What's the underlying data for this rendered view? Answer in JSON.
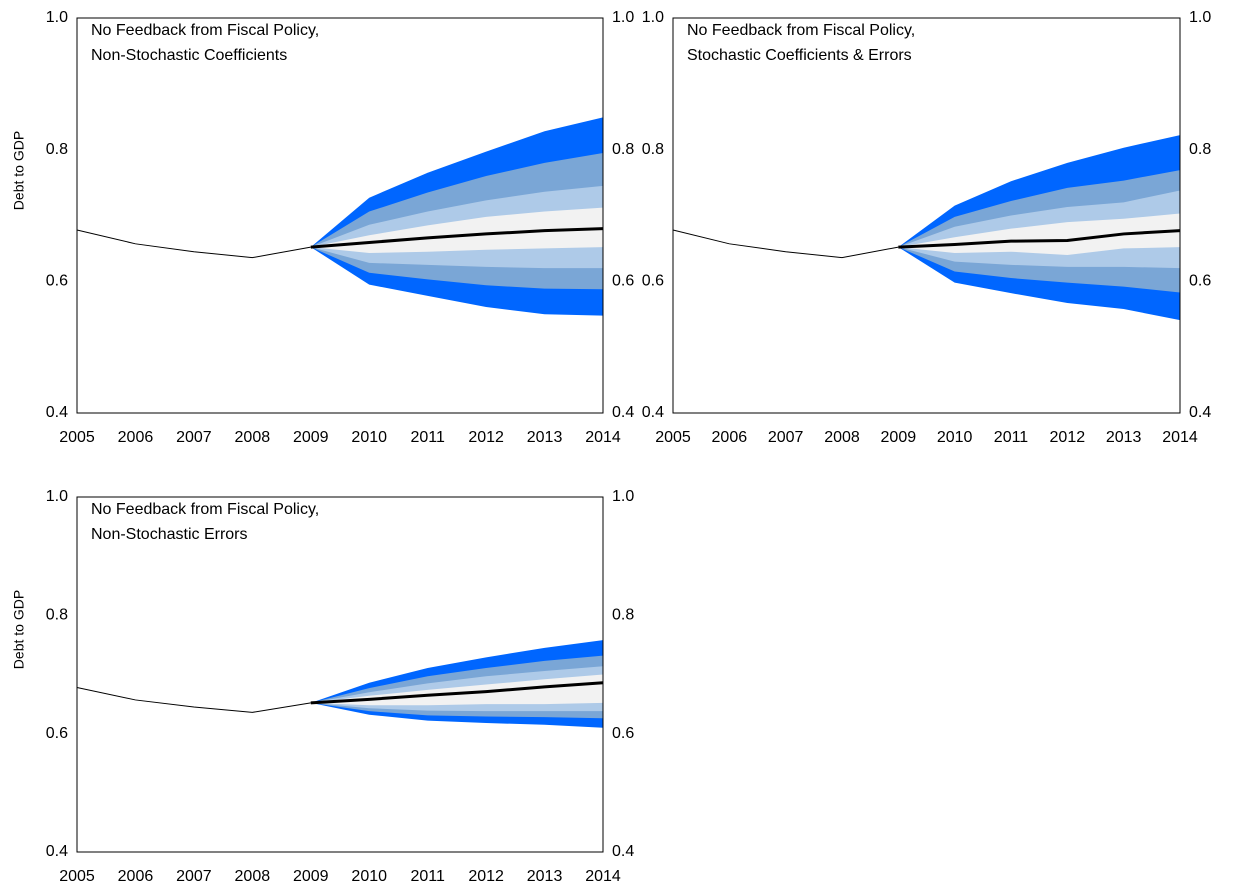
{
  "chart_data": [
    {
      "type": "fan",
      "title": [
        "No Feedback from Fiscal Policy,",
        "Non-Stochastic Coefficients"
      ],
      "ylabel": "Debt to GDP",
      "x": [
        2005,
        2006,
        2007,
        2008,
        2009,
        2010,
        2011,
        2012,
        2013,
        2014
      ],
      "xlim": [
        2005,
        2014
      ],
      "xticks": [
        2005,
        2006,
        2007,
        2008,
        2009,
        2010,
        2011,
        2012,
        2013,
        2014
      ],
      "ylim": [
        0.4,
        1.0
      ],
      "yticks": [
        {
          "value": 1.0,
          "label": "1.0"
        },
        0.8,
        0.6,
        0.4
      ],
      "y2lim": [
        0.4,
        1.0
      ],
      "y2ticks": [
        {
          "value": 1.0,
          "label": "1.0"
        },
        0.8,
        0.6,
        0.4
      ],
      "history": {
        "color": "#000000",
        "values": [
          0.678,
          0.657,
          0.645,
          0.636,
          0.652,
          null,
          null,
          null,
          null,
          null
        ]
      },
      "median": {
        "color": "#000000",
        "values": [
          null,
          null,
          null,
          null,
          0.652,
          0.659,
          0.666,
          0.672,
          0.677,
          0.68
        ]
      },
      "bands": [
        {
          "color": "#0066ff",
          "upper": [
            null,
            null,
            null,
            null,
            0.652,
            0.727,
            0.765,
            0.797,
            0.828,
            0.849
          ],
          "lower": [
            null,
            null,
            null,
            null,
            0.652,
            0.595,
            0.578,
            0.561,
            0.55,
            0.548
          ]
        },
        {
          "color": "#7aa6d6",
          "upper": [
            null,
            null,
            null,
            null,
            0.652,
            0.706,
            0.735,
            0.76,
            0.78,
            0.795
          ],
          "lower": [
            null,
            null,
            null,
            null,
            0.652,
            0.613,
            0.603,
            0.594,
            0.589,
            0.588
          ]
        },
        {
          "color": "#aecae8",
          "upper": [
            null,
            null,
            null,
            null,
            0.652,
            0.686,
            0.706,
            0.723,
            0.736,
            0.745
          ],
          "lower": [
            null,
            null,
            null,
            null,
            0.652,
            0.628,
            0.625,
            0.622,
            0.62,
            0.62
          ]
        },
        {
          "color": "#f2f2f2",
          "upper": [
            null,
            null,
            null,
            null,
            0.652,
            0.67,
            0.685,
            0.698,
            0.706,
            0.712
          ],
          "lower": [
            null,
            null,
            null,
            null,
            0.652,
            0.643,
            0.645,
            0.648,
            0.65,
            0.652
          ]
        }
      ]
    },
    {
      "type": "fan",
      "title": [
        "No Feedback from Fiscal Policy,",
        "Stochastic Coefficients & Errors"
      ],
      "x": [
        2005,
        2006,
        2007,
        2008,
        2009,
        2010,
        2011,
        2012,
        2013,
        2014
      ],
      "xlim": [
        2005,
        2014
      ],
      "xticks": [
        2005,
        2006,
        2007,
        2008,
        2009,
        2010,
        2011,
        2012,
        2013,
        2014
      ],
      "ylim": [
        0.4,
        1.0
      ],
      "yticks": [
        {
          "value": 1.0,
          "label": "1.0"
        },
        0.8,
        0.6,
        0.4
      ],
      "y2lim": [
        0.4,
        1.0
      ],
      "y2ticks": [
        {
          "value": 1.0,
          "label": "1.0"
        },
        0.8,
        0.6,
        0.4
      ],
      "history": {
        "color": "#000000",
        "values": [
          0.678,
          0.657,
          0.645,
          0.636,
          0.652,
          null,
          null,
          null,
          null,
          null
        ]
      },
      "median": {
        "color": "#000000",
        "values": [
          null,
          null,
          null,
          null,
          0.652,
          0.656,
          0.661,
          0.662,
          0.672,
          0.677
        ]
      },
      "bands": [
        {
          "color": "#0066ff",
          "upper": [
            null,
            null,
            null,
            null,
            0.652,
            0.715,
            0.752,
            0.78,
            0.803,
            0.822
          ],
          "lower": [
            null,
            null,
            null,
            null,
            0.652,
            0.598,
            0.582,
            0.567,
            0.558,
            0.541
          ]
        },
        {
          "color": "#7aa6d6",
          "upper": [
            null,
            null,
            null,
            null,
            0.652,
            0.698,
            0.722,
            0.742,
            0.753,
            0.769
          ],
          "lower": [
            null,
            null,
            null,
            null,
            0.652,
            0.615,
            0.605,
            0.598,
            0.592,
            0.583
          ]
        },
        {
          "color": "#aecae8",
          "upper": [
            null,
            null,
            null,
            null,
            0.652,
            0.683,
            0.7,
            0.713,
            0.72,
            0.738
          ],
          "lower": [
            null,
            null,
            null,
            null,
            0.652,
            0.63,
            0.625,
            0.622,
            0.622,
            0.62
          ]
        },
        {
          "color": "#f2f2f2",
          "upper": [
            null,
            null,
            null,
            null,
            0.652,
            0.667,
            0.68,
            0.69,
            0.695,
            0.703
          ],
          "lower": [
            null,
            null,
            null,
            null,
            0.652,
            0.643,
            0.645,
            0.64,
            0.65,
            0.652
          ]
        }
      ]
    },
    {
      "type": "fan",
      "title": [
        "No Feedback from Fiscal Policy,",
        "Non-Stochastic Errors"
      ],
      "ylabel": "Debt to GDP",
      "x": [
        2005,
        2006,
        2007,
        2008,
        2009,
        2010,
        2011,
        2012,
        2013,
        2014
      ],
      "xlim": [
        2005,
        2014
      ],
      "xticks": [
        2005,
        2006,
        2007,
        2008,
        2009,
        2010,
        2011,
        2012,
        2013,
        2014
      ],
      "ylim": [
        0.4,
        1.0
      ],
      "yticks": [
        {
          "value": 1.0,
          "label": "1.0"
        },
        0.8,
        0.6,
        0.4
      ],
      "y2lim": [
        0.4,
        1.0
      ],
      "y2ticks": [
        {
          "value": 1.0,
          "label": "1.0"
        },
        0.8,
        0.6,
        0.4
      ],
      "history": {
        "color": "#000000",
        "values": [
          0.678,
          0.657,
          0.645,
          0.636,
          0.652,
          null,
          null,
          null,
          null,
          null
        ]
      },
      "median": {
        "color": "#000000",
        "values": [
          null,
          null,
          null,
          null,
          0.652,
          0.658,
          0.665,
          0.671,
          0.679,
          0.686
        ]
      },
      "bands": [
        {
          "color": "#0066ff",
          "upper": [
            null,
            null,
            null,
            null,
            0.652,
            0.686,
            0.711,
            0.729,
            0.745,
            0.758
          ],
          "lower": [
            null,
            null,
            null,
            null,
            0.652,
            0.632,
            0.622,
            0.618,
            0.615,
            0.61
          ]
        },
        {
          "color": "#7aa6d6",
          "upper": [
            null,
            null,
            null,
            null,
            0.652,
            0.677,
            0.697,
            0.711,
            0.723,
            0.732
          ],
          "lower": [
            null,
            null,
            null,
            null,
            0.652,
            0.638,
            0.631,
            0.629,
            0.628,
            0.626
          ]
        },
        {
          "color": "#aecae8",
          "upper": [
            null,
            null,
            null,
            null,
            0.652,
            0.67,
            0.685,
            0.697,
            0.706,
            0.714
          ],
          "lower": [
            null,
            null,
            null,
            null,
            0.652,
            0.643,
            0.639,
            0.638,
            0.638,
            0.638
          ]
        },
        {
          "color": "#f2f2f2",
          "upper": [
            null,
            null,
            null,
            null,
            0.652,
            0.664,
            0.674,
            0.683,
            0.692,
            0.7
          ],
          "lower": [
            null,
            null,
            null,
            null,
            0.652,
            0.648,
            0.648,
            0.65,
            0.65,
            0.652
          ]
        }
      ]
    }
  ]
}
